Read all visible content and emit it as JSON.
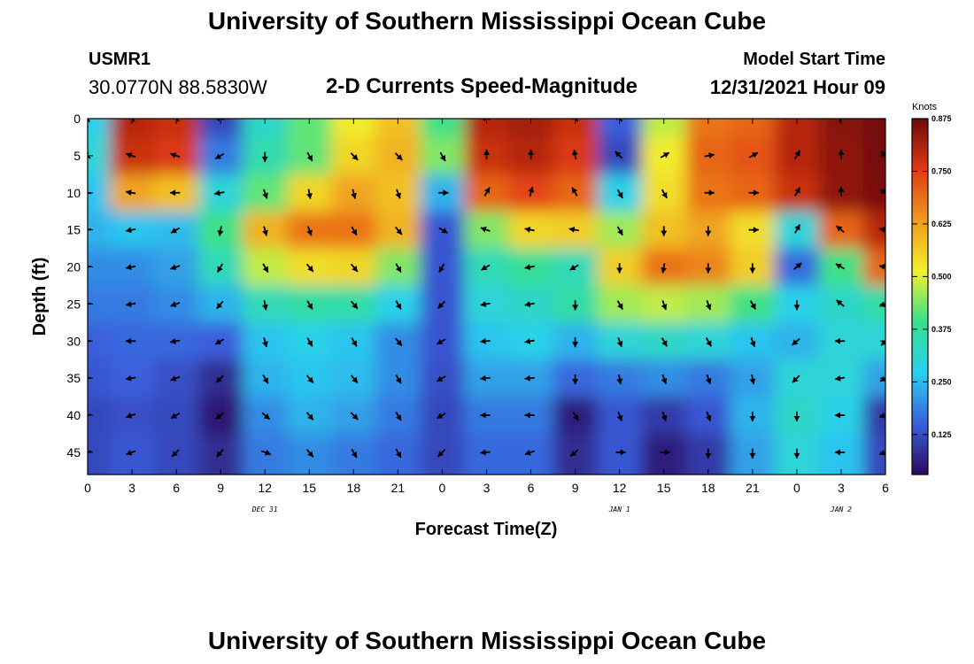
{
  "header": {
    "title": "University of Southern Mississippi Ocean Cube",
    "station_id": "USMR1",
    "coords": "30.0770N  88.5830W",
    "subtitle": "2-D Currents Speed-Magnitude",
    "model_start_label": "Model Start Time",
    "model_start_value": "12/31/2021 Hour 09"
  },
  "footer": {
    "title": "University of Southern Mississippi Ocean Cube"
  },
  "chart_data": {
    "type": "heatmap",
    "title": "2-D Currents Speed-Magnitude",
    "xlabel": "Forecast Time(Z)",
    "ylabel": "Depth (ft)",
    "x_tick_labels": [
      "0",
      "3",
      "6",
      "9",
      "12",
      "15",
      "18",
      "21",
      "0",
      "3",
      "6",
      "9",
      "12",
      "15",
      "18",
      "21",
      "0",
      "3",
      "6"
    ],
    "x_hours": [
      0,
      3,
      6,
      9,
      12,
      15,
      18,
      21,
      24,
      27,
      30,
      33,
      36,
      39,
      42,
      45,
      48,
      51,
      54
    ],
    "xlim": [
      0,
      54
    ],
    "date_labels": [
      {
        "text": "DEC 31",
        "hour": 12
      },
      {
        "text": "JAN 1",
        "hour": 36
      },
      {
        "text": "JAN 2",
        "hour": 51
      }
    ],
    "y_ticks": [
      0,
      5,
      10,
      15,
      20,
      25,
      30,
      35,
      40,
      45
    ],
    "ylim": [
      0,
      48
    ],
    "colorbar": {
      "unit": "Knots",
      "min": 0.03,
      "max": 0.875,
      "tick_labels": [
        "0.875",
        "0.750",
        "0.625",
        "0.500",
        "0.375",
        "0.250",
        "0.125"
      ],
      "tick_values": [
        0.875,
        0.75,
        0.625,
        0.5,
        0.375,
        0.25,
        0.125
      ],
      "colors": [
        "#2a0a5e",
        "#3a5fdc",
        "#2ad0f0",
        "#35e08c",
        "#f2f02c",
        "#f09a1e",
        "#e03a12",
        "#6e0a08"
      ]
    },
    "speed_depths": [
      0,
      5,
      10,
      15,
      20,
      25,
      30,
      35,
      40,
      45
    ],
    "speed_grid": [
      [
        0.28,
        0.8,
        0.78,
        0.12,
        0.32,
        0.42,
        0.52,
        0.58,
        0.4,
        0.8,
        0.82,
        0.78,
        0.15,
        0.48,
        0.68,
        0.7,
        0.8,
        0.85,
        0.87
      ],
      [
        0.3,
        0.78,
        0.76,
        0.18,
        0.35,
        0.42,
        0.55,
        0.6,
        0.44,
        0.78,
        0.8,
        0.76,
        0.12,
        0.52,
        0.7,
        0.72,
        0.8,
        0.84,
        0.87
      ],
      [
        0.26,
        0.62,
        0.58,
        0.3,
        0.42,
        0.55,
        0.62,
        0.58,
        0.24,
        0.7,
        0.74,
        0.7,
        0.28,
        0.54,
        0.68,
        0.7,
        0.78,
        0.84,
        0.86
      ],
      [
        0.24,
        0.26,
        0.25,
        0.4,
        0.6,
        0.68,
        0.68,
        0.6,
        0.14,
        0.44,
        0.55,
        0.56,
        0.46,
        0.58,
        0.62,
        0.54,
        0.3,
        0.7,
        0.8
      ],
      [
        0.2,
        0.2,
        0.22,
        0.34,
        0.48,
        0.54,
        0.55,
        0.44,
        0.14,
        0.34,
        0.38,
        0.34,
        0.56,
        0.68,
        0.66,
        0.56,
        0.16,
        0.4,
        0.7
      ],
      [
        0.18,
        0.18,
        0.2,
        0.24,
        0.34,
        0.36,
        0.36,
        0.28,
        0.14,
        0.3,
        0.32,
        0.36,
        0.46,
        0.48,
        0.46,
        0.4,
        0.28,
        0.32,
        0.36
      ],
      [
        0.15,
        0.16,
        0.16,
        0.15,
        0.26,
        0.28,
        0.26,
        0.2,
        0.14,
        0.26,
        0.28,
        0.24,
        0.3,
        0.32,
        0.3,
        0.26,
        0.24,
        0.3,
        0.3
      ],
      [
        0.14,
        0.15,
        0.13,
        0.08,
        0.24,
        0.26,
        0.25,
        0.2,
        0.13,
        0.22,
        0.22,
        0.16,
        0.18,
        0.2,
        0.18,
        0.22,
        0.3,
        0.3,
        0.22
      ],
      [
        0.12,
        0.13,
        0.12,
        0.05,
        0.2,
        0.24,
        0.22,
        0.18,
        0.12,
        0.18,
        0.18,
        0.06,
        0.14,
        0.1,
        0.14,
        0.24,
        0.32,
        0.28,
        0.1
      ],
      [
        0.12,
        0.14,
        0.12,
        0.08,
        0.18,
        0.2,
        0.18,
        0.16,
        0.12,
        0.16,
        0.16,
        0.08,
        0.14,
        0.06,
        0.1,
        0.22,
        0.3,
        0.26,
        0.12
      ]
    ],
    "vector_depths": [
      0,
      5,
      10,
      15,
      20,
      25,
      30,
      35,
      40,
      45
    ],
    "vector_hours": [
      0,
      3,
      6,
      9,
      12,
      15,
      18,
      21,
      24,
      27,
      30,
      33,
      36,
      39,
      42,
      45,
      48,
      51,
      54
    ],
    "vector_directions_deg": [
      [
        120,
        135,
        135,
        170,
        null,
        null,
        null,
        null,
        null,
        170,
        null,
        135,
        135,
        null,
        null,
        null,
        null,
        60,
        null
      ],
      [
        135,
        160,
        160,
        210,
        270,
        300,
        315,
        315,
        300,
        90,
        90,
        100,
        135,
        30,
        10,
        30,
        60,
        90,
        135
      ],
      [
        170,
        170,
        180,
        190,
        290,
        280,
        285,
        290,
        0,
        60,
        75,
        120,
        300,
        300,
        0,
        0,
        60,
        90,
        150
      ],
      [
        190,
        190,
        210,
        260,
        285,
        290,
        300,
        310,
        330,
        160,
        170,
        170,
        300,
        270,
        270,
        0,
        60,
        140,
        170
      ],
      [
        190,
        190,
        200,
        240,
        300,
        310,
        310,
        300,
        240,
        210,
        190,
        210,
        270,
        260,
        270,
        270,
        40,
        150,
        170
      ],
      [
        190,
        190,
        200,
        230,
        280,
        300,
        310,
        300,
        225,
        190,
        190,
        270,
        300,
        290,
        290,
        300,
        270,
        140,
        200
      ],
      [
        180,
        180,
        190,
        210,
        285,
        300,
        300,
        310,
        210,
        185,
        190,
        270,
        290,
        300,
        300,
        290,
        220,
        180,
        225
      ],
      [
        185,
        190,
        200,
        225,
        300,
        310,
        310,
        300,
        210,
        185,
        185,
        270,
        280,
        290,
        290,
        280,
        225,
        190,
        210
      ],
      [
        190,
        200,
        210,
        220,
        320,
        310,
        315,
        300,
        210,
        180,
        180,
        300,
        290,
        290,
        290,
        270,
        270,
        180,
        200
      ],
      [
        200,
        200,
        225,
        230,
        340,
        310,
        300,
        300,
        225,
        185,
        200,
        220,
        0,
        0,
        270,
        270,
        270,
        180,
        200
      ]
    ]
  }
}
